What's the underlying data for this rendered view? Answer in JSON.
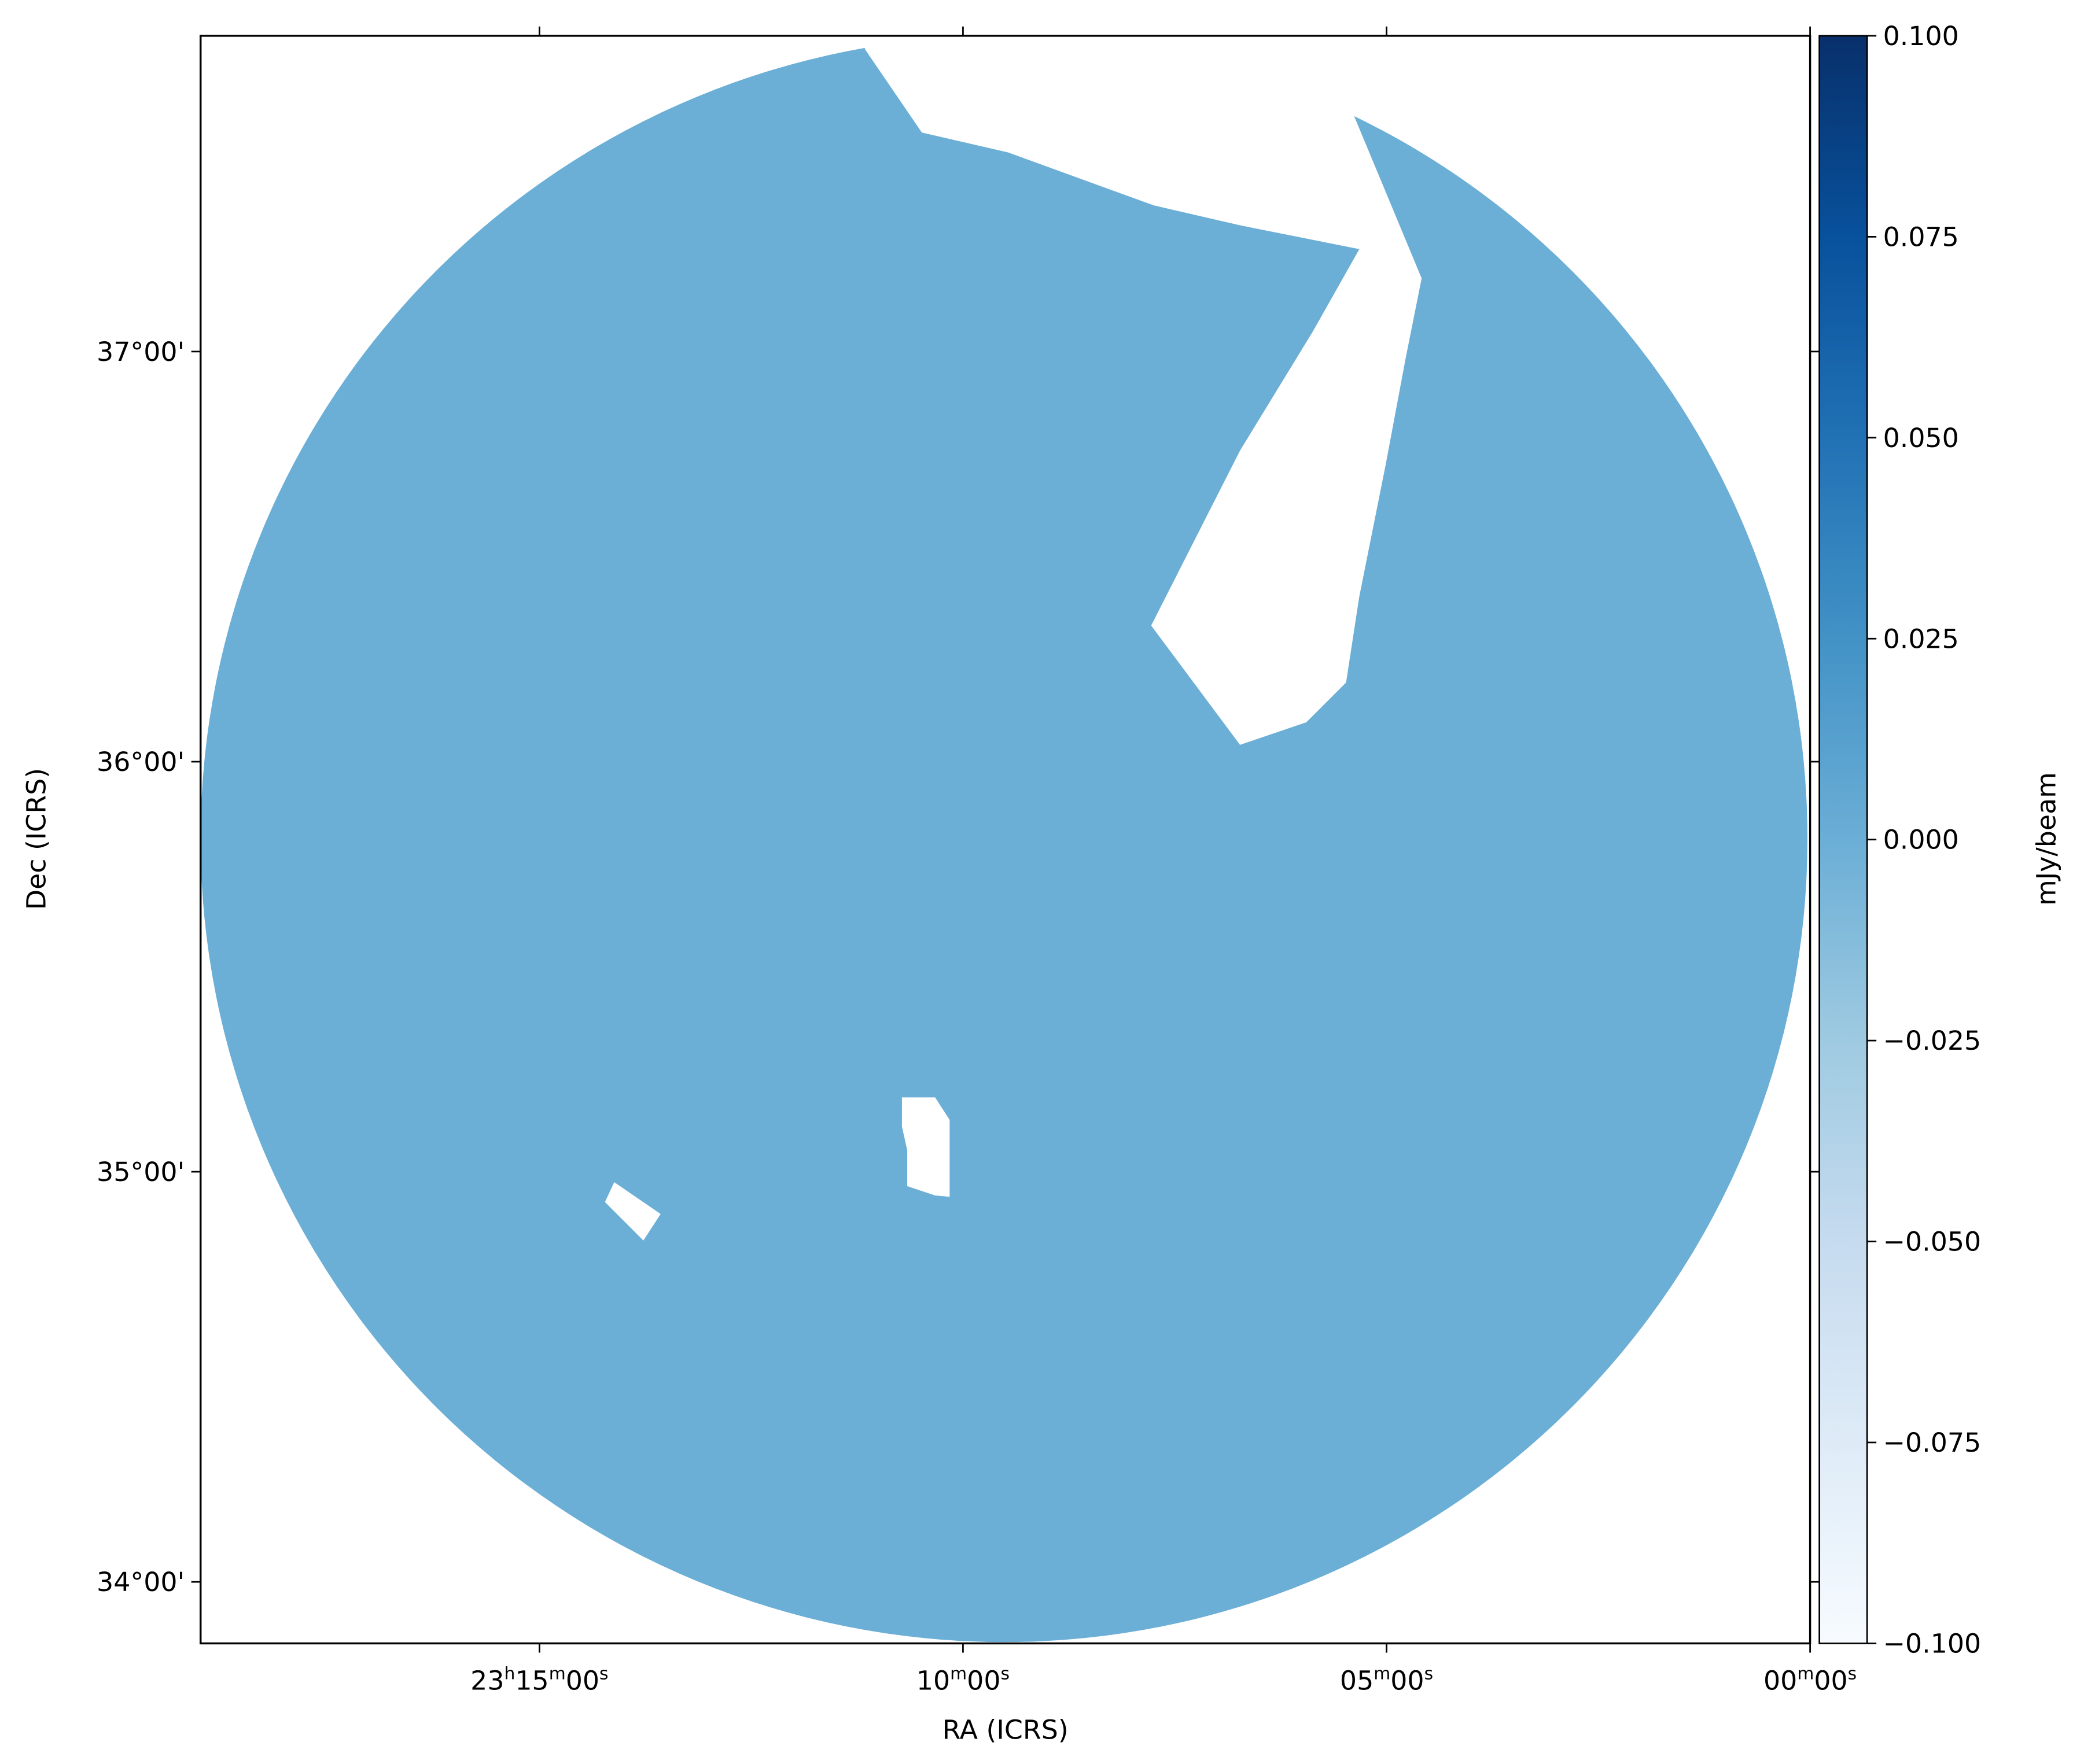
{
  "chart_data": {
    "type": "image",
    "colormap": "Blues",
    "xlabel": "RA (ICRS)",
    "ylabel": "Dec (ICRS)",
    "colorbar_label": "mJy/beam",
    "xlim": [
      349.75,
      345.0
    ],
    "ylim": [
      33.85,
      37.77
    ],
    "xticks": [
      {
        "value": 348.75,
        "label": "23h15m00s"
      },
      {
        "value": 347.5,
        "label": "10m00s"
      },
      {
        "value": 346.25,
        "label": "05m00s"
      },
      {
        "value": 345.0,
        "label": "00m00s"
      }
    ],
    "yticks": [
      {
        "value": 34,
        "label": "34°00'"
      },
      {
        "value": 35,
        "label": "35°00'"
      },
      {
        "value": 36,
        "label": "36°00'"
      },
      {
        "value": 37,
        "label": "37°00'"
      }
    ],
    "clim": [
      -0.1,
      0.1
    ],
    "cticks": [
      {
        "value": -0.1,
        "label": "−0.100"
      },
      {
        "value": -0.075,
        "label": "−0.075"
      },
      {
        "value": -0.05,
        "label": "−0.050"
      },
      {
        "value": -0.025,
        "label": "−0.025"
      },
      {
        "value": 0,
        "label": "0.000"
      },
      {
        "value": 0.025,
        "label": "0.025"
      },
      {
        "value": 0.05,
        "label": "0.050"
      },
      {
        "value": 0.075,
        "label": "0.075"
      },
      {
        "value": 0.1,
        "label": "0.100"
      }
    ]
  }
}
